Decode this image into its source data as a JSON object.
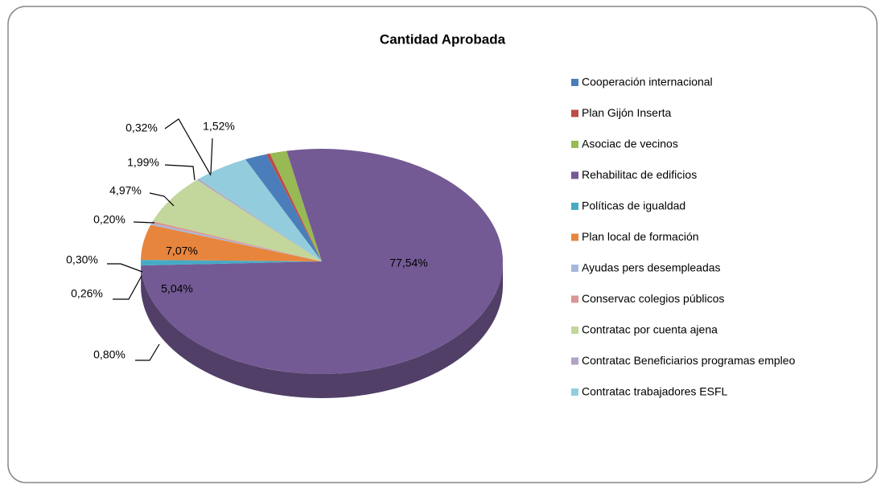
{
  "chart_data": {
    "type": "pie",
    "title": "Cantidad Aprobada",
    "categories": [
      "Cooperación internacional",
      "Plan Gijón Inserta",
      "Asociac de vecinos",
      "Rehabilitac de edificios",
      "Políticas de igualdad",
      "Plan local de formación",
      "Ayudas pers desempleadas",
      "Conservac colegios públicos",
      "Contratac por cuenta ajena",
      "Contratac Beneficiarios programas empleo",
      "Contratac  trabajadores ESFL"
    ],
    "values": [
      1.99,
      0.32,
      1.52,
      77.54,
      0.8,
      5.04,
      0.26,
      0.3,
      7.07,
      0.2,
      4.97
    ],
    "value_labels": [
      "1,99%",
      "0,32%",
      "1,52%",
      "77,54%",
      "0,80%",
      "5,04%",
      "0,26%",
      "0,30%",
      "7,07%",
      "0,20%",
      "4,97%"
    ],
    "colors": [
      "#4a7ebb",
      "#be4b48",
      "#98b954",
      "#735a94",
      "#46aac5",
      "#e8853d",
      "#a5b8d9",
      "#d99694",
      "#c3d69b",
      "#b3a2c7",
      "#93cddd"
    ],
    "legend": "right"
  }
}
